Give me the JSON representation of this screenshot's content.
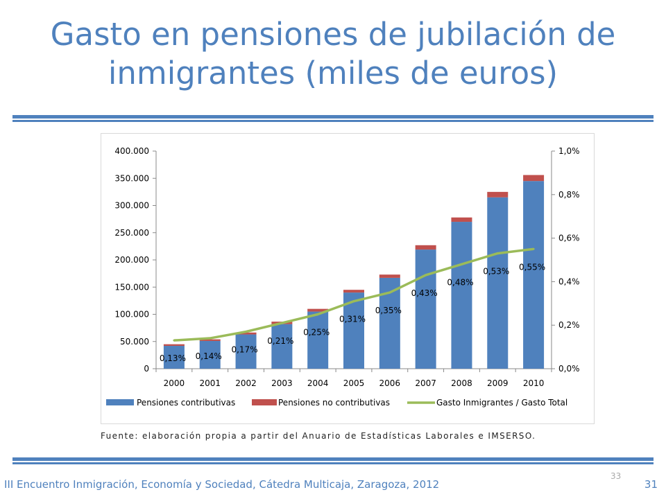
{
  "slide": {
    "title_line1": "Gasto en pensiones de jubilación de",
    "title_line2": "inmigrantes (miles de euros)",
    "source": "Fuente: elaboración propia a partir del Anuario de Estadísticas Laborales e IMSERSO.",
    "page_center": "33",
    "footer_text": "III Encuentro Inmigración, Economía y Sociedad, Cátedra Multicaja, Zaragoza, 2012",
    "footer_page": "31",
    "accent_color": "#4f81bd"
  },
  "chart_data": {
    "type": "bar",
    "stacked": true,
    "categories": [
      "2000",
      "2001",
      "2002",
      "2003",
      "2004",
      "2005",
      "2006",
      "2007",
      "2008",
      "2009",
      "2010"
    ],
    "series": [
      {
        "name": "Pensiones contributivas",
        "color": "#4f81bd",
        "values": [
          42000,
          51000,
          63000,
          82000,
          105000,
          140000,
          167000,
          219000,
          270000,
          315000,
          345000
        ]
      },
      {
        "name": "Pensiones no contributivas",
        "color": "#c0504d",
        "values": [
          3000,
          3000,
          3500,
          4500,
          5000,
          5000,
          6000,
          8000,
          8000,
          10000,
          11000
        ]
      },
      {
        "name": "Gasto Inmigrantes / Gasto Total",
        "color": "#9bbb59",
        "type": "line",
        "axis": "right",
        "values": [
          0.13,
          0.14,
          0.17,
          0.21,
          0.25,
          0.31,
          0.35,
          0.43,
          0.48,
          0.53,
          0.55
        ],
        "labels": [
          "0,13%",
          "0,14%",
          "0,17%",
          "0,21%",
          "0,25%",
          "0,31%",
          "0,35%",
          "0,43%",
          "0,48%",
          "0,53%",
          "0,55%"
        ]
      }
    ],
    "y_left": {
      "min": 0,
      "max": 400000,
      "ticks": [
        "0",
        "50.000",
        "100.000",
        "150.000",
        "200.000",
        "250.000",
        "300.000",
        "350.000",
        "400.000"
      ]
    },
    "y_right": {
      "min": 0,
      "max": 1.0,
      "ticks": [
        "0,0%",
        "0,2%",
        "0,4%",
        "0,6%",
        "0,8%",
        "1,0%"
      ]
    },
    "grid": false,
    "legend": "bottom"
  }
}
